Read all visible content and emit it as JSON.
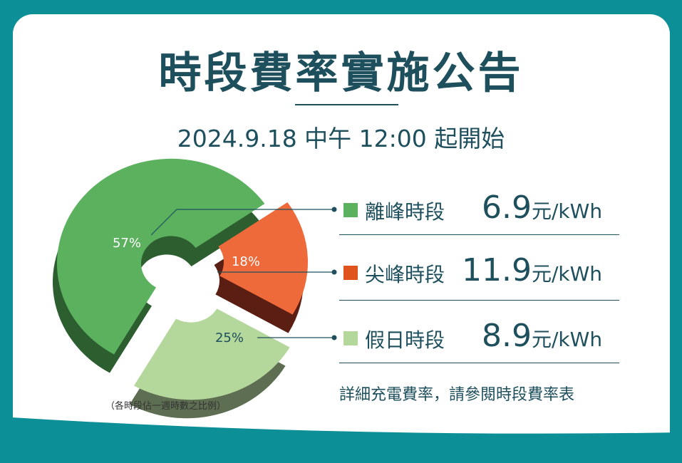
{
  "title": "時段費率實施公告",
  "subtitle": "2024.9.18 中午 12:00 起開始",
  "chart_data": {
    "type": "pie",
    "variant": "exploded-3d-donut",
    "slices": [
      {
        "name": "離峰時段",
        "value": 57,
        "label": "57%",
        "color": "#5cb15f",
        "side_color": "#2d5e30"
      },
      {
        "name": "尖峰時段",
        "value": 18,
        "label": "18%",
        "color": "#ee6a3b",
        "side_color": "#5a1f12"
      },
      {
        "name": "假日時段",
        "value": 25,
        "label": "25%",
        "color": "#b4d79b",
        "side_color": "#5e6e52"
      }
    ],
    "note": "（各時段佔一週時數之比例）"
  },
  "rates": [
    {
      "name": "離峰時段",
      "price": "6.9",
      "unit": "元/kWh",
      "color": "#5cb15f"
    },
    {
      "name": "尖峰時段",
      "price": "11.9",
      "unit": "元/kWh",
      "color": "#e0531c"
    },
    {
      "name": "假日時段",
      "price": "8.9",
      "unit": "元/kWh",
      "color": "#b4d79b"
    }
  ],
  "footer_note": "詳細充電費率，請參閱時段費率表",
  "colors": {
    "background": "#0d8f98",
    "text": "#1e4f5d",
    "card": "#ffffff"
  }
}
